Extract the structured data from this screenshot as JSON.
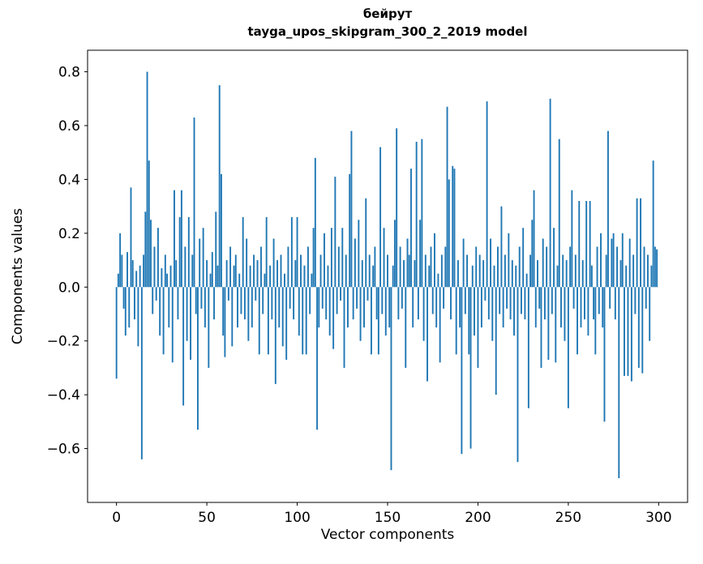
{
  "figure": {
    "title_word": "бейрут",
    "title_model": "tayga_upos_skipgram_300_2_2019 model",
    "xlabel": "Vector components",
    "ylabel": "Components values"
  },
  "chart_data": {
    "type": "bar",
    "title": "бейрут — tayga_upos_skipgram_300_2_2019 model",
    "xlabel": "Vector components",
    "ylabel": "Components values",
    "bar_color": "#1f77b4",
    "grid": false,
    "legend": "none",
    "xlim": [
      -16,
      316
    ],
    "ylim": [
      -0.8,
      0.88
    ],
    "xticks": [
      0,
      50,
      100,
      150,
      200,
      250,
      300
    ],
    "xtick_labels": [
      "0",
      "50",
      "100",
      "150",
      "200",
      "250",
      "300"
    ],
    "yticks": [
      -0.6,
      -0.4,
      -0.2,
      0.0,
      0.2,
      0.4,
      0.6,
      0.8
    ],
    "ytick_labels": [
      "−0.6",
      "−0.4",
      "−0.2",
      "0.0",
      "0.2",
      "0.4",
      "0.6",
      "0.8"
    ],
    "x_start": 0,
    "values": [
      -0.34,
      0.05,
      0.2,
      0.12,
      -0.08,
      -0.18,
      0.13,
      -0.15,
      0.37,
      0.1,
      -0.12,
      0.06,
      -0.22,
      0.08,
      -0.64,
      0.12,
      0.28,
      0.8,
      0.47,
      0.25,
      -0.1,
      0.15,
      -0.05,
      0.22,
      -0.18,
      0.07,
      -0.25,
      0.12,
      0.05,
      -0.15,
      0.08,
      -0.28,
      0.36,
      0.1,
      -0.12,
      0.26,
      0.36,
      -0.44,
      0.15,
      -0.2,
      0.26,
      -0.27,
      0.12,
      0.63,
      -0.1,
      -0.53,
      0.18,
      -0.08,
      0.22,
      -0.15,
      0.1,
      -0.3,
      0.05,
      0.13,
      -0.12,
      0.28,
      0.08,
      0.75,
      0.42,
      -0.18,
      -0.26,
      0.1,
      -0.05,
      0.15,
      -0.22,
      0.08,
      0.12,
      -0.15,
      0.05,
      -0.1,
      0.26,
      -0.12,
      0.18,
      -0.2,
      0.08,
      -0.15,
      0.12,
      -0.05,
      0.1,
      -0.25,
      0.15,
      -0.1,
      0.05,
      0.26,
      -0.25,
      0.08,
      -0.12,
      0.18,
      -0.36,
      0.1,
      -0.15,
      0.12,
      -0.22,
      0.05,
      -0.27,
      0.15,
      -0.08,
      0.26,
      -0.12,
      0.1,
      0.26,
      -0.18,
      0.12,
      -0.25,
      0.08,
      -0.25,
      0.15,
      -0.1,
      0.05,
      0.22,
      0.48,
      -0.53,
      -0.15,
      0.12,
      -0.08,
      0.2,
      -0.12,
      0.08,
      -0.18,
      0.22,
      -0.23,
      0.41,
      -0.1,
      0.15,
      -0.05,
      0.22,
      -0.3,
      0.12,
      -0.15,
      0.42,
      0.58,
      -0.12,
      0.18,
      -0.08,
      0.25,
      -0.2,
      0.1,
      -0.15,
      0.33,
      -0.05,
      0.12,
      -0.25,
      0.08,
      0.15,
      -0.12,
      -0.25,
      0.52,
      -0.1,
      0.22,
      -0.18,
      0.12,
      -0.15,
      -0.68,
      0.08,
      0.25,
      0.59,
      -0.12,
      0.15,
      -0.08,
      0.1,
      -0.3,
      0.18,
      0.12,
      0.44,
      -0.15,
      0.1,
      0.54,
      -0.12,
      0.25,
      0.55,
      -0.2,
      0.12,
      -0.35,
      0.08,
      0.15,
      -0.1,
      0.2,
      -0.15,
      0.05,
      -0.28,
      0.12,
      -0.08,
      0.15,
      0.67,
      0.4,
      -0.12,
      0.45,
      0.44,
      -0.25,
      0.1,
      -0.15,
      -0.62,
      0.18,
      -0.1,
      0.12,
      -0.25,
      -0.6,
      0.08,
      -0.18,
      0.15,
      -0.3,
      0.12,
      -0.15,
      0.1,
      -0.05,
      0.69,
      -0.12,
      0.18,
      -0.2,
      0.08,
      -0.4,
      0.15,
      -0.1,
      0.3,
      -0.15,
      0.12,
      -0.08,
      0.2,
      -0.12,
      0.1,
      -0.18,
      0.08,
      -0.65,
      0.15,
      -0.1,
      0.22,
      -0.12,
      0.05,
      -0.45,
      0.12,
      0.25,
      0.36,
      -0.15,
      0.1,
      -0.08,
      -0.3,
      0.18,
      -0.12,
      0.15,
      -0.27,
      0.7,
      -0.1,
      0.22,
      -0.28,
      0.08,
      0.55,
      -0.15,
      0.12,
      -0.2,
      0.1,
      -0.45,
      0.15,
      0.36,
      -0.08,
      0.12,
      -0.25,
      0.32,
      -0.15,
      0.1,
      -0.12,
      0.32,
      -0.18,
      0.32,
      0.08,
      -0.12,
      -0.25,
      0.15,
      -0.1,
      0.2,
      -0.15,
      -0.5,
      0.12,
      0.58,
      -0.08,
      0.18,
      0.2,
      -0.12,
      0.15,
      -0.71,
      0.1,
      0.2,
      -0.33,
      0.08,
      -0.33,
      0.18,
      -0.35,
      0.12,
      -0.1,
      0.33,
      -0.3,
      0.33,
      -0.32,
      0.15,
      -0.08,
      0.12,
      -0.2,
      0.08,
      0.47,
      0.15,
      0.14
    ]
  }
}
